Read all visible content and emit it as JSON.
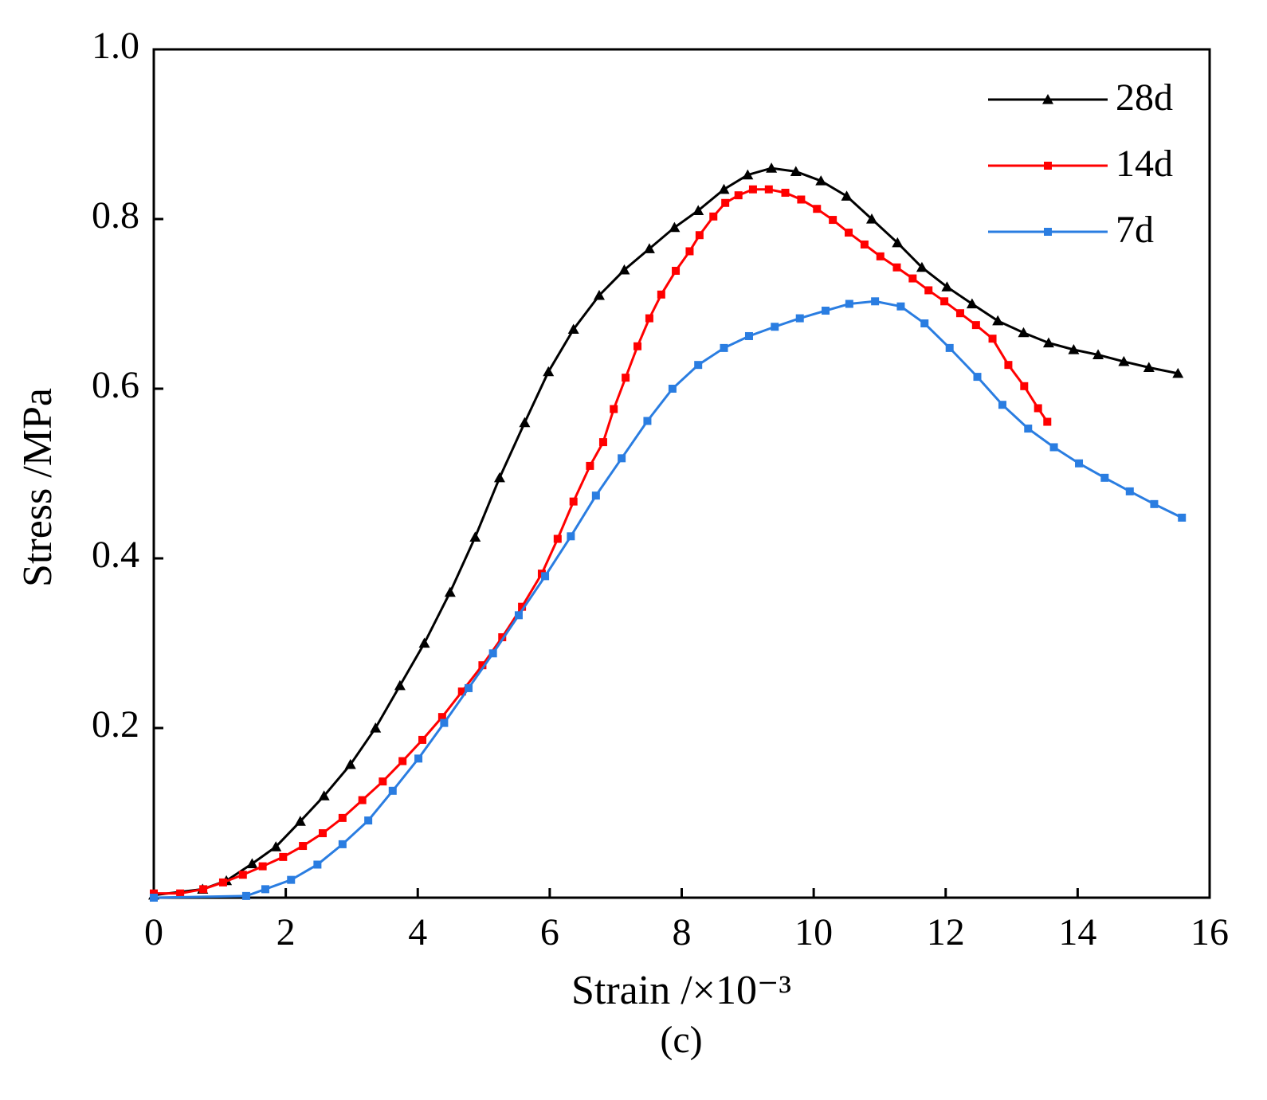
{
  "chart_data": {
    "type": "line",
    "xlabel": "Strain /×10⁻³",
    "ylabel": "Stress /MPa",
    "caption": "(c)",
    "xlim": [
      0,
      16
    ],
    "xticks": [
      0,
      2,
      4,
      6,
      8,
      10,
      12,
      14,
      16
    ],
    "ylim": [
      0,
      1
    ],
    "yticks": [
      0.2,
      0.4,
      0.6,
      0.8,
      {
        "value": 1,
        "label": "1.0"
      }
    ],
    "legend": "upper right",
    "series": [
      {
        "name": "28d",
        "color": "#000000",
        "marker": "triangle",
        "x": [
          0,
          0.74,
          1.1,
          1.49,
          1.85,
          2.22,
          2.58,
          2.98,
          3.36,
          3.73,
          4.1,
          4.49,
          4.87,
          5.24,
          5.62,
          5.98,
          6.36,
          6.75,
          7.13,
          7.51,
          7.89,
          8.25,
          8.64,
          9.0,
          9.36,
          9.73,
          10.11,
          10.5,
          10.88,
          11.27,
          11.64,
          12.02,
          12.4,
          12.79,
          13.18,
          13.56,
          13.94,
          14.31,
          14.7,
          15.08,
          15.52
        ],
        "values": [
          0.003,
          0.01,
          0.02,
          0.04,
          0.06,
          0.09,
          0.12,
          0.157,
          0.2,
          0.25,
          0.3,
          0.36,
          0.425,
          0.495,
          0.56,
          0.62,
          0.67,
          0.71,
          0.74,
          0.765,
          0.79,
          0.81,
          0.835,
          0.852,
          0.86,
          0.856,
          0.845,
          0.827,
          0.8,
          0.772,
          0.743,
          0.72,
          0.7,
          0.68,
          0.666,
          0.654,
          0.646,
          0.64,
          0.632,
          0.625,
          0.618
        ]
      },
      {
        "name": "14d",
        "color": "#ff0000",
        "marker": "square",
        "x": [
          0,
          0.4,
          0.75,
          1.05,
          1.35,
          1.65,
          1.96,
          2.26,
          2.56,
          2.86,
          3.16,
          3.47,
          3.77,
          4.07,
          4.37,
          4.67,
          4.98,
          5.28,
          5.58,
          5.88,
          6.12,
          6.36,
          6.61,
          6.81,
          6.97,
          7.15,
          7.33,
          7.51,
          7.69,
          7.91,
          8.12,
          8.27,
          8.48,
          8.66,
          8.86,
          9.08,
          9.32,
          9.57,
          9.81,
          10.05,
          10.29,
          10.53,
          10.77,
          11.01,
          11.26,
          11.5,
          11.74,
          11.98,
          12.22,
          12.46,
          12.71,
          12.95,
          13.19,
          13.4,
          13.54
        ],
        "values": [
          0.005,
          0.005,
          0.01,
          0.018,
          0.027,
          0.037,
          0.048,
          0.061,
          0.076,
          0.094,
          0.115,
          0.137,
          0.161,
          0.186,
          0.213,
          0.243,
          0.274,
          0.307,
          0.343,
          0.382,
          0.423,
          0.467,
          0.509,
          0.537,
          0.576,
          0.613,
          0.65,
          0.683,
          0.711,
          0.739,
          0.762,
          0.781,
          0.803,
          0.819,
          0.828,
          0.835,
          0.835,
          0.831,
          0.823,
          0.812,
          0.799,
          0.784,
          0.77,
          0.756,
          0.743,
          0.73,
          0.716,
          0.703,
          0.689,
          0.675,
          0.659,
          0.628,
          0.603,
          0.577,
          0.561
        ]
      },
      {
        "name": "7d",
        "color": "#2a7de1",
        "marker": "square",
        "x": [
          0,
          1.4,
          1.69,
          2.08,
          2.48,
          2.86,
          3.25,
          3.62,
          4.01,
          4.4,
          4.77,
          5.14,
          5.53,
          5.93,
          6.32,
          6.7,
          7.09,
          7.48,
          7.86,
          8.25,
          8.64,
          9.02,
          9.41,
          9.79,
          10.18,
          10.54,
          10.93,
          11.32,
          11.68,
          12.06,
          12.48,
          12.86,
          13.25,
          13.64,
          14.02,
          14.41,
          14.79,
          15.16,
          15.58
        ],
        "values": [
          0,
          0.002,
          0.01,
          0.021,
          0.039,
          0.063,
          0.091,
          0.126,
          0.164,
          0.206,
          0.247,
          0.288,
          0.333,
          0.379,
          0.426,
          0.474,
          0.518,
          0.562,
          0.6,
          0.628,
          0.648,
          0.662,
          0.673,
          0.683,
          0.692,
          0.7,
          0.703,
          0.697,
          0.677,
          0.648,
          0.614,
          0.581,
          0.553,
          0.531,
          0.512,
          0.495,
          0.479,
          0.464,
          0.448
        ]
      }
    ]
  }
}
